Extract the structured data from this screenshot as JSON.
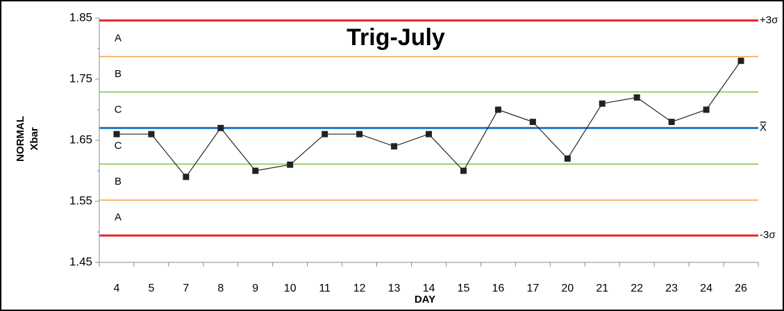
{
  "chart_data": {
    "type": "control",
    "title": "Trig-July",
    "y_label": [
      "NORMAL",
      "Xbar"
    ],
    "x_label": "DAY",
    "categories": [
      "4",
      "5",
      "7",
      "8",
      "9",
      "10",
      "11",
      "12",
      "13",
      "14",
      "15",
      "16",
      "17",
      "20",
      "21",
      "22",
      "23",
      "24",
      "26"
    ],
    "values": [
      1.66,
      1.66,
      1.59,
      1.67,
      1.6,
      1.61,
      1.66,
      1.66,
      1.64,
      1.66,
      1.6,
      1.7,
      1.68,
      1.62,
      1.71,
      1.72,
      1.68,
      1.7,
      1.78
    ],
    "color": "#222222",
    "ylim": [
      1.45,
      1.85
    ],
    "yticks": [
      1.45,
      1.55,
      1.65,
      1.75,
      1.85
    ],
    "minor_yticks": [
      1.5,
      1.6,
      1.7,
      1.8
    ],
    "control_lines": [
      {
        "value": 1.846,
        "color": "#e8242a",
        "label": "+3σ"
      },
      {
        "value": 1.787,
        "color": "#f5a04a"
      },
      {
        "value": 1.729,
        "color": "#7dc242"
      },
      {
        "value": 1.67,
        "color": "#1f78c8",
        "label": "X̿"
      },
      {
        "value": 1.611,
        "color": "#7dc242"
      },
      {
        "value": 1.552,
        "color": "#f5a04a"
      },
      {
        "value": 1.494,
        "color": "#e8242a",
        "label": "-3σ"
      }
    ],
    "zone_labels": [
      "A",
      "B",
      "C",
      "C",
      "B",
      "A"
    ]
  }
}
